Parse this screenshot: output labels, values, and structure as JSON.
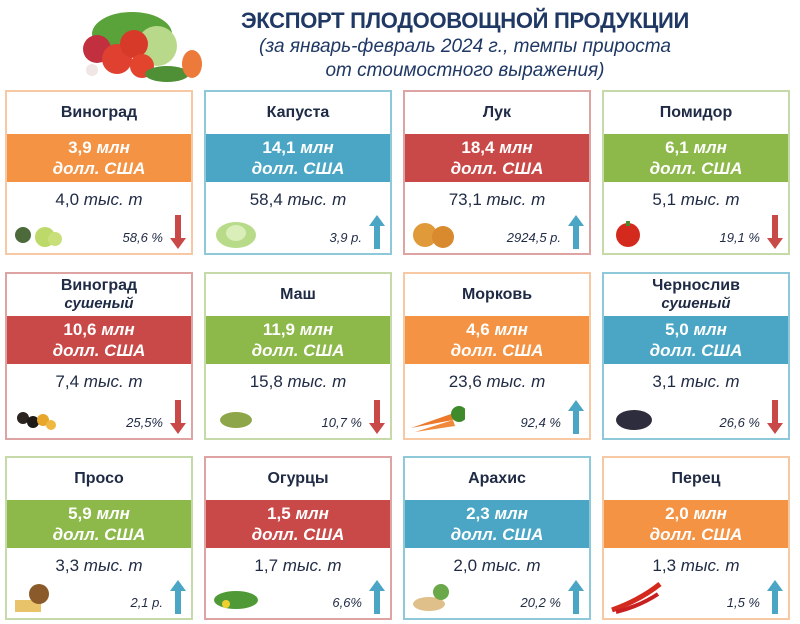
{
  "header": {
    "title": "ЭКСПОРТ ПЛОДООВОЩНОЙ ПРОДУКЦИИ",
    "subtitle_line1": "(за январь-февраль 2024 г., темпы прироста",
    "subtitle_line2": "от стоимостного выражения)",
    "illustration": "vegetables-basket-image"
  },
  "colors": {
    "orange": "#f39343",
    "blue": "#4aa6c4",
    "red": "#c94848",
    "green": "#8db84a",
    "arrow_up": "#4aa6c4",
    "arrow_down": "#c94848",
    "text": "#1f2a44"
  },
  "units": {
    "value_unit_1": "млн",
    "value_unit_2": "долл. США",
    "qty_unit": "тыс. т"
  },
  "cards": [
    {
      "name": "Виноград",
      "sub": "",
      "value": "3,9",
      "qty": "4,0",
      "rate": "58,6 %",
      "trend": "down",
      "color": "orange",
      "icon": "grapes-icon"
    },
    {
      "name": "Капуста",
      "sub": "",
      "value": "14,1",
      "qty": "58,4",
      "rate": "3,9 р.",
      "trend": "up",
      "color": "blue",
      "icon": "cabbage-icon"
    },
    {
      "name": "Лук",
      "sub": "",
      "value": "18,4",
      "qty": "73,1",
      "rate": "2924,5 р.",
      "trend": "up",
      "color": "red",
      "icon": "onion-icon"
    },
    {
      "name": "Помидор",
      "sub": "",
      "value": "6,1",
      "qty": "5,1",
      "rate": "19,1 %",
      "trend": "down",
      "color": "green",
      "icon": "tomato-icon"
    },
    {
      "name": "Виноград",
      "sub": "сушеный",
      "value": "10,6",
      "qty": "7,4",
      "rate": "25,5%",
      "trend": "down",
      "color": "red",
      "icon": "raisins-icon"
    },
    {
      "name": "Маш",
      "sub": "",
      "value": "11,9",
      "qty": "15,8",
      "rate": "10,7 %",
      "trend": "down",
      "color": "green",
      "icon": "mung-bean-icon"
    },
    {
      "name": "Морковь",
      "sub": "",
      "value": "4,6",
      "qty": "23,6",
      "rate": "92,4 %",
      "trend": "up",
      "color": "orange",
      "icon": "carrot-icon"
    },
    {
      "name": "Чернослив",
      "sub": "сушеный",
      "value": "5,0",
      "qty": "3,1",
      "rate": "26,6 %",
      "trend": "down",
      "color": "blue",
      "icon": "prunes-icon"
    },
    {
      "name": "Просо",
      "sub": "",
      "value": "5,9",
      "qty": "3,3",
      "rate": "2,1 р.",
      "trend": "up",
      "color": "green",
      "icon": "millet-icon"
    },
    {
      "name": "Огурцы",
      "sub": "",
      "value": "1,5",
      "qty": "1,7",
      "rate": "6,6%",
      "trend": "up",
      "color": "red",
      "icon": "cucumber-icon"
    },
    {
      "name": "Арахис",
      "sub": "",
      "value": "2,3",
      "qty": "2,0",
      "rate": "20,2 %",
      "trend": "up",
      "color": "blue",
      "icon": "peanut-icon"
    },
    {
      "name": "Перец",
      "sub": "",
      "value": "2,0",
      "qty": "1,3",
      "rate": "1,5 %",
      "trend": "up",
      "color": "orange",
      "icon": "chili-pepper-icon"
    }
  ]
}
